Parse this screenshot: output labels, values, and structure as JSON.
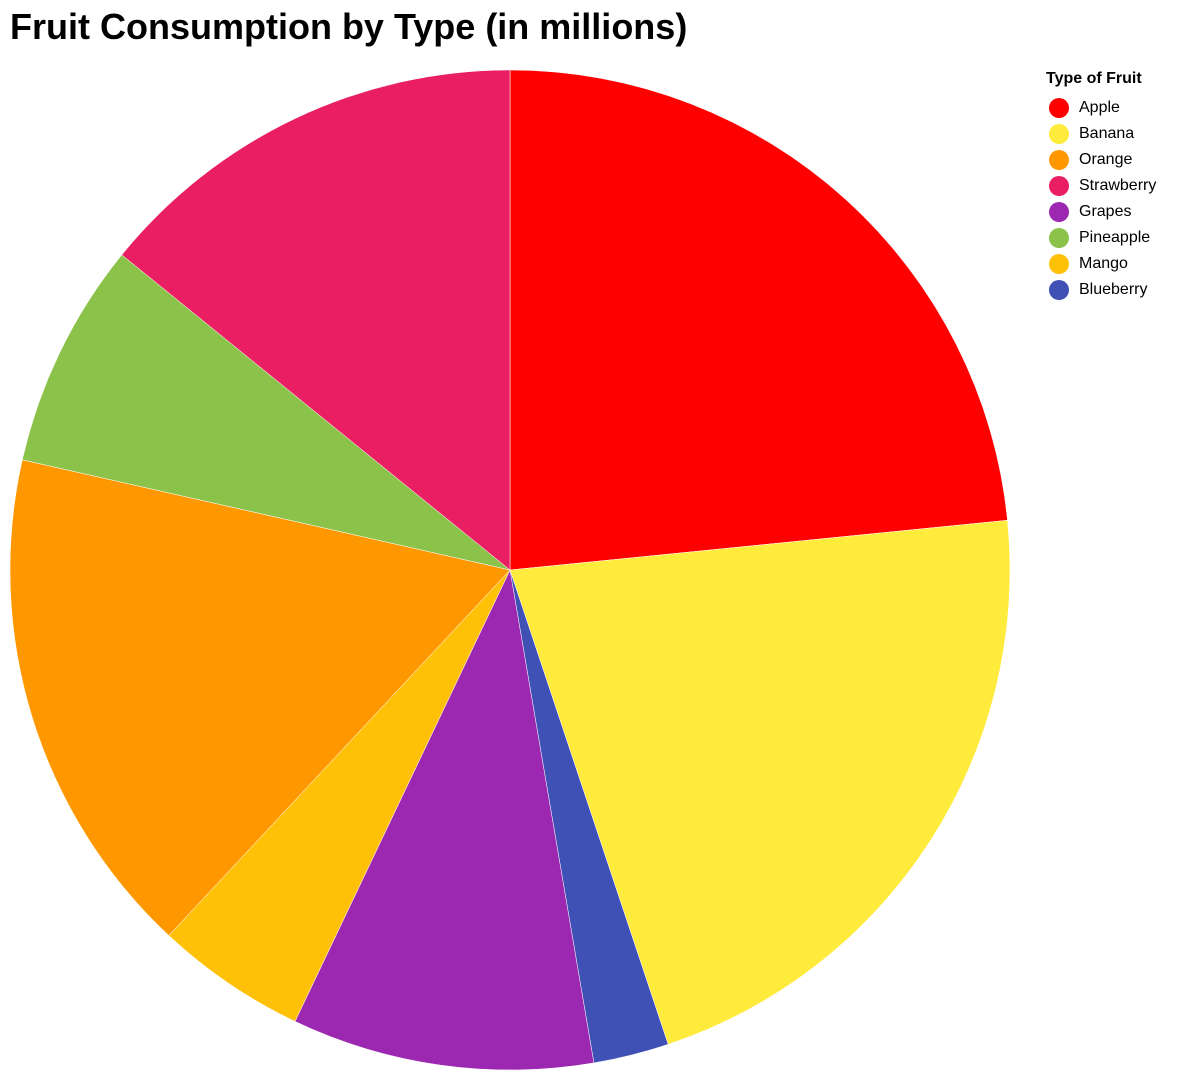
{
  "chart_data": {
    "type": "pie",
    "title": "Fruit Consumption by Type (in millions)",
    "legend": {
      "title": "Type of Fruit",
      "placement": "top-right"
    },
    "categories": [
      "Apple",
      "Banana",
      "Orange",
      "Strawberry",
      "Grapes",
      "Pineapple",
      "Mango",
      "Blueberry"
    ],
    "values": [
      24.0,
      22.0,
      17.0,
      14.5,
      10.0,
      7.5,
      5.0,
      2.5
    ],
    "colors": [
      "#FF0000",
      "#FFEB3B",
      "#FF9800",
      "#E91E63",
      "#9C27B0",
      "#8BC34A",
      "#FFC107",
      "#3F51B5"
    ],
    "slice_order": [
      "Apple",
      "Banana",
      "Blueberry",
      "Grapes",
      "Mango",
      "Orange",
      "Pineapple",
      "Strawberry"
    ]
  }
}
